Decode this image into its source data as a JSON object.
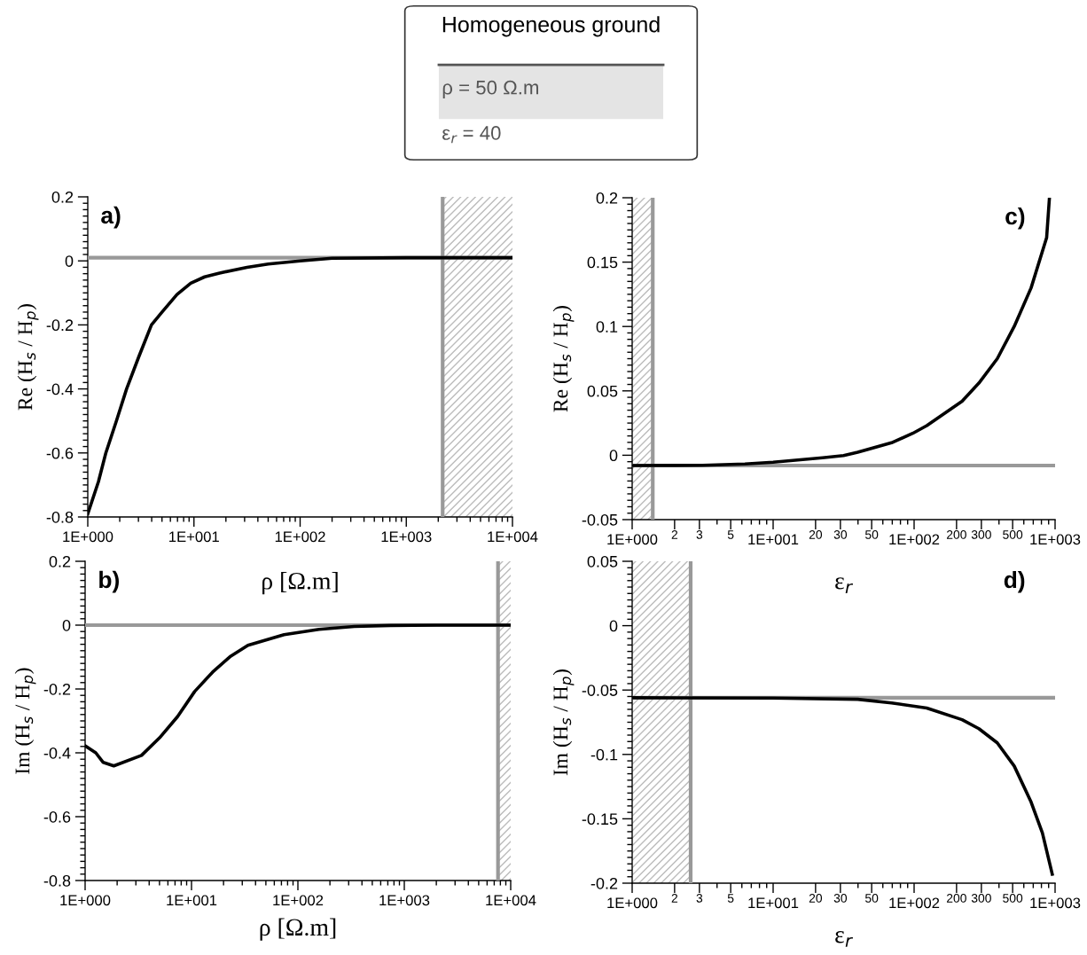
{
  "chart_data": [
    {
      "type": "other",
      "title": "Homogeneous ground",
      "annotations": [
        "ρ = 50 Ω.m",
        "ε$_{r}$ = 40"
      ]
    },
    {
      "type": "line",
      "xlabel": "ρ [Ω.m]",
      "ylabel": "Re (H$_{s}$ / H$_{p}$)",
      "log": "x",
      "annotations": [
        "a)"
      ],
      "xlim": [
        1,
        10000
      ],
      "ylim": [
        -0.8,
        0.2
      ],
      "xticks": [
        {
          "value": 1,
          "label": "1E+000"
        },
        {
          "value": 10,
          "label": "1E+001"
        },
        {
          "value": 100,
          "label": "1E+002"
        },
        {
          "value": 1000,
          "label": "1E+003"
        },
        {
          "value": 10000,
          "label": "1E+004"
        }
      ],
      "yticks": [
        -0.8,
        -0.6,
        -0.4,
        -0.2,
        0,
        0.2
      ],
      "ref_lines": [
        {
          "axis": "y",
          "value": 0.01,
          "color": "#999999"
        },
        {
          "axis": "x",
          "value": 2200,
          "color": "#999999"
        }
      ],
      "bands": [
        {
          "axis": "x",
          "from": 2200,
          "to": 10000,
          "color": "#bbbbbb"
        }
      ],
      "series": [
        {
          "color": "#000000",
          "x": [
            1,
            1.26,
            1.48,
            1.86,
            2.32,
            3.02,
            3.98,
            5.01,
            6.92,
            9.33,
            12.6,
            17.4,
            31.6,
            50.1,
            100,
            200,
            1000,
            10000
          ],
          "values": [
            -0.79,
            -0.69,
            -0.6,
            -0.5,
            -0.4,
            -0.3,
            -0.2,
            -0.16,
            -0.105,
            -0.07,
            -0.05,
            -0.038,
            -0.02,
            -0.01,
            0.0,
            0.008,
            0.01,
            0.01
          ]
        }
      ]
    },
    {
      "type": "line",
      "xlabel": "ρ [Ω.m]",
      "ylabel": "Im (H$_{s}$ / H$_{p}$)",
      "log": "x",
      "annotations": [
        "b)"
      ],
      "xlim": [
        1,
        10000
      ],
      "ylim": [
        -0.8,
        0.2
      ],
      "xticks": [
        {
          "value": 1,
          "label": "1E+000"
        },
        {
          "value": 10,
          "label": "1E+001"
        },
        {
          "value": 100,
          "label": "1E+002"
        },
        {
          "value": 1000,
          "label": "1E+003"
        },
        {
          "value": 10000,
          "label": "1E+004"
        }
      ],
      "yticks": [
        -0.8,
        -0.6,
        -0.4,
        -0.2,
        0,
        0.2
      ],
      "ref_lines": [
        {
          "axis": "y",
          "value": 0,
          "color": "#999999"
        },
        {
          "axis": "x",
          "value": 7600,
          "color": "#999999"
        }
      ],
      "bands": [
        {
          "axis": "x",
          "from": 7600,
          "to": 10000,
          "color": "#bbbbbb"
        }
      ],
      "series": [
        {
          "color": "#000000",
          "x": [
            1,
            1.26,
            1.48,
            1.86,
            3.39,
            5.01,
            7.41,
            10.7,
            15.8,
            23.4,
            33.9,
            74.1,
            158,
            339,
            741,
            2000,
            10000
          ],
          "values": [
            -0.378,
            -0.4,
            -0.43,
            -0.441,
            -0.408,
            -0.353,
            -0.286,
            -0.208,
            -0.147,
            -0.097,
            -0.063,
            -0.03,
            -0.013,
            -0.004,
            -0.001,
            0,
            0
          ]
        }
      ]
    },
    {
      "type": "line",
      "xlabel": "ε$_{r}$",
      "ylabel": "Re (H$_{s}$ / H$_{p}$)",
      "log": "x",
      "annotations": [
        "c)"
      ],
      "xlim": [
        1,
        1000
      ],
      "ylim": [
        -0.05,
        0.2
      ],
      "xticks": [
        {
          "value": 1,
          "label": "1E+000"
        },
        2,
        3,
        5,
        {
          "value": 10,
          "label": "1E+001"
        },
        20,
        30,
        50,
        {
          "value": 100,
          "label": "1E+002"
        },
        200,
        300,
        500,
        {
          "value": 1000,
          "label": "1E+003"
        }
      ],
      "yticks": [
        -0.05,
        0,
        0.05,
        0.1,
        0.15,
        0.2
      ],
      "ref_lines": [
        {
          "axis": "y",
          "value": -0.008,
          "color": "#999999"
        },
        {
          "axis": "x",
          "value": 1.4,
          "color": "#999999"
        }
      ],
      "bands": [
        {
          "axis": "x",
          "from": 1,
          "to": 1.4,
          "color": "#bbbbbb"
        }
      ],
      "series": [
        {
          "color": "#000000",
          "x": [
            1,
            3.16,
            6.31,
            10,
            22.4,
            31.6,
            39.8,
            69.2,
            97.7,
            123,
            219,
            288,
            389,
            513,
            676,
            871,
            912
          ],
          "values": [
            -0.008,
            -0.0078,
            -0.0068,
            -0.0054,
            -0.002,
            -0.0002,
            0.0023,
            0.0097,
            0.017,
            0.023,
            0.042,
            0.056,
            0.075,
            0.1,
            0.13,
            0.169,
            0.2
          ]
        }
      ]
    },
    {
      "type": "line",
      "xlabel": "ε$_{r}$",
      "ylabel": "Im (H$_{s}$ / H$_{p}$)",
      "log": "x",
      "annotations": [
        "d)"
      ],
      "xlim": [
        1,
        1000
      ],
      "ylim": [
        -0.2,
        0.05
      ],
      "xticks": [
        {
          "value": 1,
          "label": "1E+000"
        },
        2,
        3,
        5,
        {
          "value": 10,
          "label": "1E+001"
        },
        20,
        30,
        50,
        {
          "value": 100,
          "label": "1E+002"
        },
        200,
        300,
        500,
        {
          "value": 1000,
          "label": "1E+003"
        }
      ],
      "yticks": [
        -0.2,
        -0.15,
        -0.1,
        -0.05,
        0,
        0.05
      ],
      "ref_lines": [
        {
          "axis": "y",
          "value": -0.056,
          "color": "#999999"
        },
        {
          "axis": "x",
          "value": 2.6,
          "color": "#999999"
        }
      ],
      "bands": [
        {
          "axis": "x",
          "from": 1,
          "to": 2.6,
          "color": "#bbbbbb"
        }
      ],
      "series": [
        {
          "color": "#000000",
          "x": [
            1,
            10,
            39.8,
            69.2,
            123,
            219,
            288,
            389,
            513,
            676,
            813,
            955
          ],
          "values": [
            -0.056,
            -0.0562,
            -0.0572,
            -0.06,
            -0.064,
            -0.073,
            -0.08,
            -0.091,
            -0.109,
            -0.137,
            -0.161,
            -0.193
          ]
        }
      ]
    }
  ]
}
